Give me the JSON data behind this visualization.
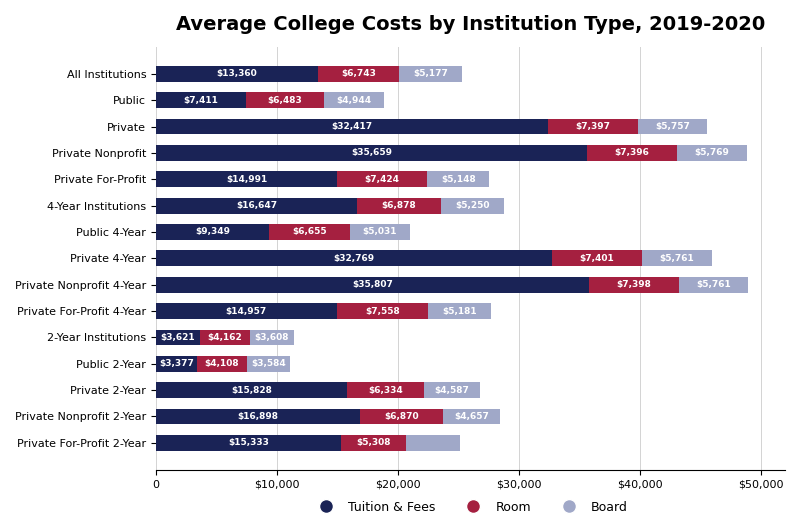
{
  "title": "Average College Costs by Institution Type, 2019-2020",
  "categories": [
    "All Institutions",
    "Public",
    "Private",
    "Private Nonprofit",
    "Private For-Profit",
    "4-Year Institutions",
    "Public 4-Year",
    "Private 4-Year",
    "Private Nonprofit 4-Year",
    "Private For-Profit 4-Year",
    "2-Year Institutions",
    "Public 2-Year",
    "Private 2-Year",
    "Private Nonprofit 2-Year",
    "Private For-Profit 2-Year"
  ],
  "tuition": [
    13360,
    7411,
    32417,
    35659,
    14991,
    16647,
    9349,
    32769,
    35807,
    14957,
    3621,
    3377,
    15828,
    16898,
    15333
  ],
  "room": [
    6743,
    6483,
    7397,
    7396,
    7424,
    6878,
    6655,
    7401,
    7398,
    7558,
    4162,
    4108,
    6334,
    6870,
    5308
  ],
  "board": [
    5177,
    4944,
    5757,
    5769,
    5148,
    5250,
    5031,
    5761,
    5761,
    5181,
    3608,
    3584,
    4587,
    4657,
    4500
  ],
  "tuition_labels": [
    "$13,360",
    "$7,411",
    "$32,417",
    "$35,659",
    "$14,991",
    "$16,647",
    "$9,349",
    "$32,769",
    "$35,807",
    "$14,957",
    "$3,621",
    "$3,377",
    "$15,828",
    "$16,898",
    "$15,333"
  ],
  "room_labels": [
    "$6,743",
    "$6,483",
    "$7,397",
    "$7,396",
    "$7,424",
    "$6,878",
    "$6,655",
    "$7,401",
    "$7,398",
    "$7,558",
    "$4,162",
    "$4,108",
    "$6,334",
    "$6,870",
    "$5,308"
  ],
  "board_labels": [
    "$5,177",
    "$4,944",
    "$5,757",
    "$5,769",
    "$5,148",
    "$5,250",
    "$5,031",
    "$5,761",
    "$5,761",
    "$5,181",
    "$3,608",
    "$3,584",
    "$4,587",
    "$4,657",
    ""
  ],
  "tuition_color": "#1a2356",
  "room_color": "#a52040",
  "board_color": "#a0a8c8",
  "xlim": [
    0,
    52000
  ],
  "xticks": [
    0,
    10000,
    20000,
    30000,
    40000,
    50000
  ],
  "xticklabels": [
    "0",
    "$10,000",
    "$20,000",
    "$30,000",
    "$40,000",
    "$50,000"
  ],
  "figsize": [
    8.0,
    5.32
  ],
  "dpi": 100,
  "bar_height": 0.6,
  "legend_labels": [
    "Tuition & Fees",
    "Room",
    "Board"
  ],
  "title_fontsize": 14,
  "label_fontsize": 6.5,
  "tick_fontsize": 8,
  "ylabel_fontsize": 8
}
